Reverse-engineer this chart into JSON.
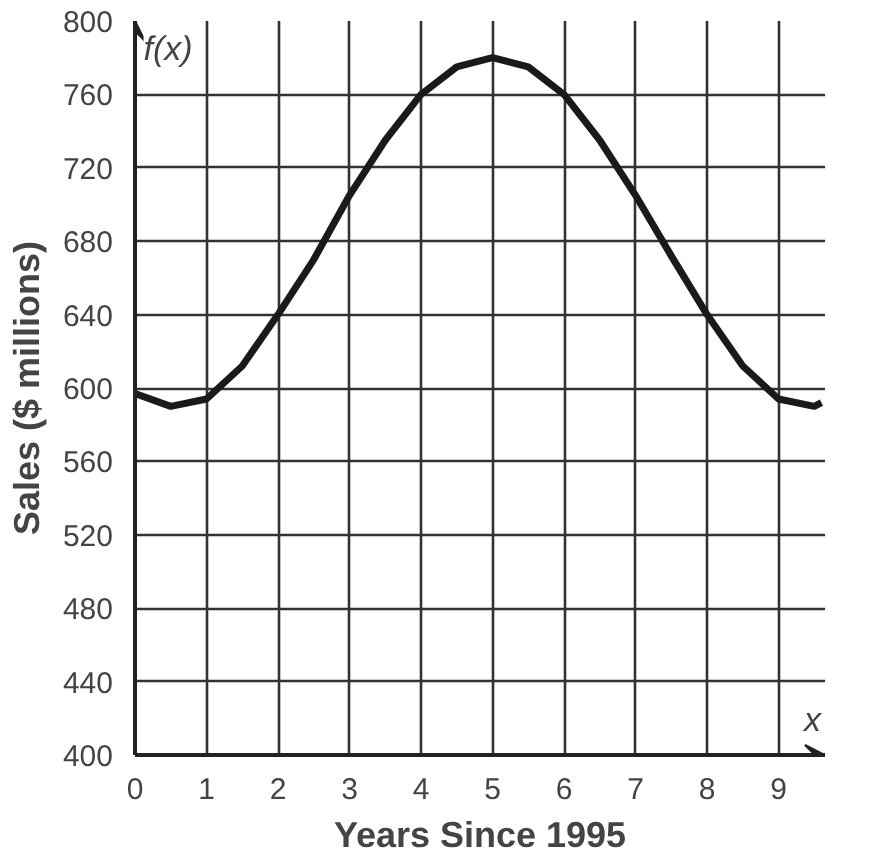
{
  "chart_data": {
    "type": "line",
    "xlabel": "Years Since 1995",
    "ylabel": "Sales ($ millions)",
    "annotations": [
      "f(x)",
      "x"
    ],
    "x": [
      0,
      0.5,
      1,
      1.5,
      2,
      2.5,
      3,
      3.5,
      4,
      4.5,
      5,
      5.5,
      6,
      6.5,
      7,
      7.5,
      8,
      8.5,
      9,
      9.5,
      9.6
    ],
    "series": [
      {
        "color": "#1a1a1a",
        "values": [
          597,
          590,
          594,
          612,
          640,
          670,
          705,
          735,
          760,
          775,
          780,
          775,
          760,
          735,
          705,
          672,
          640,
          612,
          594,
          590,
          592
        ]
      }
    ],
    "xlim": [
      0,
      9.65
    ],
    "ylim": [
      400,
      800
    ],
    "xticks": [
      0,
      1,
      2,
      3,
      4,
      5,
      6,
      7,
      8,
      9
    ],
    "yticks": [
      400,
      440,
      480,
      520,
      560,
      600,
      640,
      680,
      720,
      760,
      800
    ],
    "grid": true,
    "marker": "none",
    "line_style": "solid"
  }
}
